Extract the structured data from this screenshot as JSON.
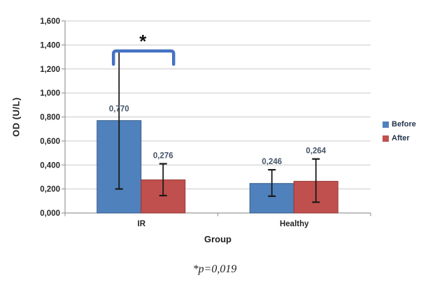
{
  "chart_data": {
    "type": "bar",
    "title": "",
    "xlabel": "Group",
    "ylabel": "OD (U/L)",
    "categories": [
      "IR",
      "Healthy"
    ],
    "series": [
      {
        "name": "Before",
        "color": "#4f81bd",
        "border_color": "#385d8a",
        "values": [
          0.77,
          0.246
        ],
        "value_labels": [
          "0,770",
          "0,246"
        ],
        "error_high": [
          1.35,
          0.36
        ],
        "error_low": [
          0.2,
          0.14
        ]
      },
      {
        "name": "After",
        "color": "#c0504d",
        "border_color": "#953735",
        "values": [
          0.276,
          0.264
        ],
        "value_labels": [
          "0,276",
          "0,264"
        ],
        "error_high": [
          0.41,
          0.45
        ],
        "error_low": [
          0.145,
          0.09
        ]
      }
    ],
    "ylim": [
      0,
      1.6
    ],
    "ytick_step": 0.2,
    "ytick_labels": [
      "0,000",
      "0,200",
      "0,400",
      "0,600",
      "0,800",
      "1,000",
      "1,200",
      "1,400",
      "1,600"
    ],
    "grid": true,
    "legend_position": "right",
    "significance": {
      "symbol": "*",
      "category": "IR",
      "connects": [
        "Before",
        "After"
      ],
      "bracket_color": "#4472c4"
    }
  },
  "footnote": "*p=0,019",
  "colors": {
    "gridline": "#c9c9c9",
    "axis": "#9a9a9a",
    "tick_text": "#262626",
    "data_label_text": "#44546a",
    "error_bar": "#1a1a1a"
  }
}
